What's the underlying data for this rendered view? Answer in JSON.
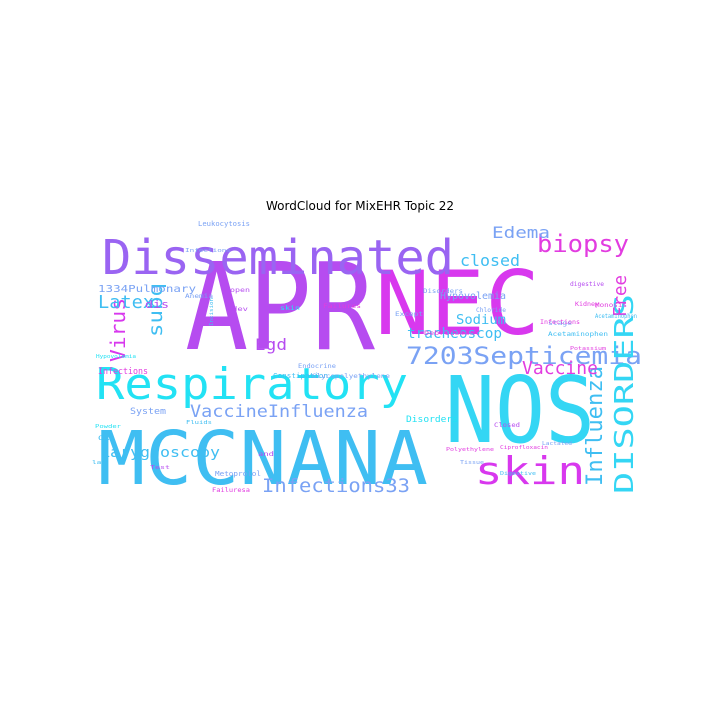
{
  "title": "WordCloud for MixEHR Topic 22",
  "palette": {
    "purple": "#9a64f2",
    "violet": "#b64cf0",
    "magenta": "#d838ee",
    "pink": "#e23ce0",
    "cyan": "#34d6f4",
    "aqua": "#22e2f4",
    "blue": "#3fbef2",
    "periwinkle": "#7aa2f4"
  },
  "words": [
    {
      "text": "APR",
      "color": "violet"
    },
    {
      "text": "NEC",
      "color": "magenta"
    },
    {
      "text": "NOS",
      "color": "cyan"
    },
    {
      "text": "MCCNANA",
      "color": "blue"
    },
    {
      "text": "Disseminated",
      "color": "purple"
    },
    {
      "text": "Respiratory",
      "color": "aqua"
    },
    {
      "text": "skin",
      "color": "magenta"
    },
    {
      "text": "7203Septicemia",
      "color": "periwinkle"
    },
    {
      "text": "DISORDERS",
      "color": "cyan"
    },
    {
      "text": "Influenza",
      "color": "blue"
    },
    {
      "text": "biopsy",
      "color": "pink"
    },
    {
      "text": "VaccineInfluenza",
      "color": "periwinkle"
    },
    {
      "text": "Infections33",
      "color": "periwinkle"
    },
    {
      "text": "Vaccine",
      "color": "pink"
    },
    {
      "text": "Virus",
      "color": "magenta"
    },
    {
      "text": "subq",
      "color": "blue"
    },
    {
      "text": "Latex",
      "color": "blue"
    },
    {
      "text": "Free",
      "color": "pink"
    },
    {
      "text": "Edema",
      "color": "periwinkle"
    },
    {
      "text": "closed",
      "color": "blue"
    },
    {
      "text": "Egd",
      "color": "violet"
    },
    {
      "text": "tracheoscop",
      "color": "blue"
    },
    {
      "text": "Sodium",
      "color": "blue"
    },
    {
      "text": "Larygnoscopy",
      "color": "blue"
    },
    {
      "text": "1334Pulmonary",
      "color": "periwinkle"
    },
    {
      "text": "Hypovolemia",
      "color": "periwinkle"
    },
    {
      "text": "dis",
      "color": "violet"
    },
    {
      "text": "System",
      "color": "periwinkle"
    },
    {
      "text": "Infections",
      "color": "pink"
    },
    {
      "text": "Disorders",
      "color": "aqua"
    },
    {
      "text": "Constipation",
      "color": "blue"
    },
    {
      "text": "Metoprolol",
      "color": "periwinkle"
    },
    {
      "text": "Failuresa",
      "color": "pink"
    },
    {
      "text": "Leukocytosis",
      "color": "periwinkle"
    },
    {
      "text": "digestive",
      "color": "violet"
    },
    {
      "text": "Kidney",
      "color": "pink"
    },
    {
      "text": "stage",
      "color": "periwinkle"
    },
    {
      "text": "Acetaminophen",
      "color": "blue"
    },
    {
      "text": "Potassium",
      "color": "pink"
    },
    {
      "text": "Endocrine",
      "color": "periwinkle"
    },
    {
      "text": "Lactated",
      "color": "periwinkle"
    },
    {
      "text": "Tissue",
      "color": "periwinkle"
    },
    {
      "text": "Polyethylene",
      "color": "pink"
    },
    {
      "text": "Glycopolyethylene",
      "color": "periwinkle"
    },
    {
      "text": "skin",
      "color": "aqua"
    },
    {
      "text": "open",
      "color": "violet"
    },
    {
      "text": "Except",
      "color": "periwinkle"
    },
    {
      "text": "Debridement",
      "color": "pink"
    },
    {
      "text": "Closed",
      "color": "violet"
    },
    {
      "text": "Failures",
      "color": "pink"
    },
    {
      "text": "Chloride",
      "color": "periwinkle"
    },
    {
      "text": "Infections",
      "color": "pink"
    },
    {
      "text": "Disorders",
      "color": "periwinkle"
    },
    {
      "text": "Anemia",
      "color": "periwinkle"
    },
    {
      "text": "dev",
      "color": "violet"
    },
    {
      "text": "Incision",
      "color": "blue"
    },
    {
      "text": "Infections",
      "color": "periwinkle"
    },
    {
      "text": "Hypovolemia",
      "color": "aqua"
    },
    {
      "text": "Fluids",
      "color": "blue"
    },
    {
      "text": "Ox",
      "color": "blue"
    },
    {
      "text": "Powder",
      "color": "aqua"
    },
    {
      "text": "Digestive",
      "color": "blue"
    },
    {
      "text": "Ciprofloxacin",
      "color": "pink"
    },
    {
      "text": "Monosis",
      "color": "pink"
    },
    {
      "text": "Acetaminophen",
      "color": "blue"
    },
    {
      "text": "and",
      "color": "violet"
    },
    {
      "text": "lab",
      "color": "blue"
    },
    {
      "text": "Test",
      "color": "violet"
    }
  ]
}
